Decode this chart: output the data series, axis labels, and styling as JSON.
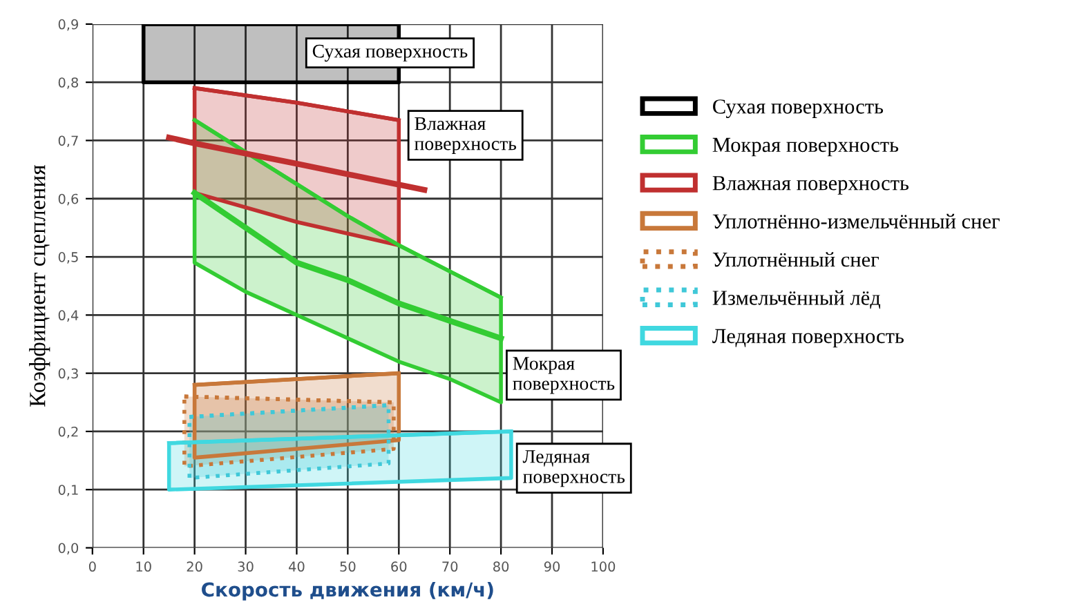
{
  "chart_data": {
    "type": "line",
    "xlabel": "Скорость движения (км/ч)",
    "ylabel": "Коэффициент сцепления",
    "xlim": [
      0,
      100
    ],
    "xticks": [
      0,
      10,
      20,
      30,
      40,
      50,
      60,
      70,
      80,
      90,
      100
    ],
    "ylim": [
      0,
      0.9
    ],
    "yticks": [
      {
        "value": 0,
        "label": "0,0"
      },
      {
        "value": 0.1,
        "label": "0,1"
      },
      {
        "value": 0.2,
        "label": "0,2"
      },
      {
        "value": 0.3,
        "label": "0,3"
      },
      {
        "value": 0.4,
        "label": "0,4"
      },
      {
        "value": 0.5,
        "label": "0,5"
      },
      {
        "value": 0.6,
        "label": "0,6"
      },
      {
        "value": 0.7,
        "label": "0,7"
      },
      {
        "value": 0.8,
        "label": "0,8"
      },
      {
        "value": 0.9,
        "label": "0,9"
      }
    ],
    "grid": true,
    "legend": "right",
    "series": [
      {
        "name": "Сухая поверхность",
        "color": "#000000",
        "line_style": "solid",
        "x": [
          10,
          60
        ],
        "values": [
          0.9,
          0.9
        ],
        "lower": [
          0.8,
          0.8
        ],
        "upper": [
          0.9,
          0.9
        ]
      },
      {
        "name": "Мокрая поверхность",
        "color": "#33cc33",
        "line_style": "solid",
        "x": [
          20,
          30,
          40,
          50,
          60,
          70,
          80
        ],
        "values": [
          0.735,
          0.68,
          0.625,
          0.57,
          0.52,
          0.475,
          0.43
        ],
        "lower": [
          0.49,
          0.44,
          0.4,
          0.36,
          0.32,
          0.29,
          0.25
        ],
        "upper": [
          0.735,
          0.68,
          0.625,
          0.57,
          0.52,
          0.475,
          0.43
        ]
      },
      {
        "type": "line",
        "color": "#33cc33",
        "line_style": "solid",
        "x": [
          20,
          30,
          40,
          50,
          60,
          70,
          80
        ],
        "values": [
          0.61,
          0.55,
          0.49,
          0.46,
          0.42,
          0.39,
          0.36
        ]
      },
      {
        "name": "Влажная поверхность",
        "color": "#c03030",
        "line_style": "solid",
        "x": [
          20,
          40,
          60
        ],
        "values": [
          0.79,
          0.765,
          0.735
        ],
        "lower": [
          0.61,
          0.56,
          0.52
        ],
        "upper": [
          0.79,
          0.765,
          0.735
        ]
      },
      {
        "type": "line",
        "color": "#c03030",
        "line_style": "solid",
        "x": [
          15,
          20,
          40,
          65
        ],
        "values": [
          0.705,
          0.695,
          0.66,
          0.615
        ]
      },
      {
        "name": "Уплотнённо-измельчённый снег",
        "type": "line",
        "color": "#c8783a",
        "line_style": "solid",
        "x": [
          20,
          60
        ],
        "values": [
          0.28,
          0.3
        ],
        "lower": [
          0.155,
          0.185
        ],
        "upper": [
          0.28,
          0.3
        ]
      },
      {
        "name": "Уплотнённый снег",
        "type": "line",
        "color": "#c8783a",
        "line_style": "dotted",
        "x": [
          18,
          59
        ],
        "values": [
          0.26,
          0.25
        ],
        "lower": [
          0.14,
          0.17
        ],
        "upper": [
          0.26,
          0.25
        ]
      },
      {
        "name": "Измельчённый лёд",
        "type": "line",
        "color": "#40c8d8",
        "line_style": "dotted",
        "x": [
          19,
          58
        ],
        "values": [
          0.225,
          0.245
        ],
        "lower": [
          0.12,
          0.145
        ],
        "upper": [
          0.225,
          0.245
        ]
      },
      {
        "name": "Ледяная поверхность",
        "color": "#40d8e0",
        "line_style": "solid",
        "x": [
          15,
          82
        ],
        "values": [
          0.18,
          0.2
        ],
        "lower": [
          0.1,
          0.12
        ],
        "upper": [
          0.18,
          0.2
        ]
      }
    ],
    "annotations": [
      "Сухая поверхность",
      {
        "text": "Влажная\nповерхность",
        "x": 60,
        "y": 0.624
      },
      {
        "text": "Мокрая\nповерхность",
        "x": 80,
        "y": 0.31
      },
      {
        "text": "Ледяная\nповерхность",
        "x": 82,
        "y": 0.15
      }
    ]
  }
}
